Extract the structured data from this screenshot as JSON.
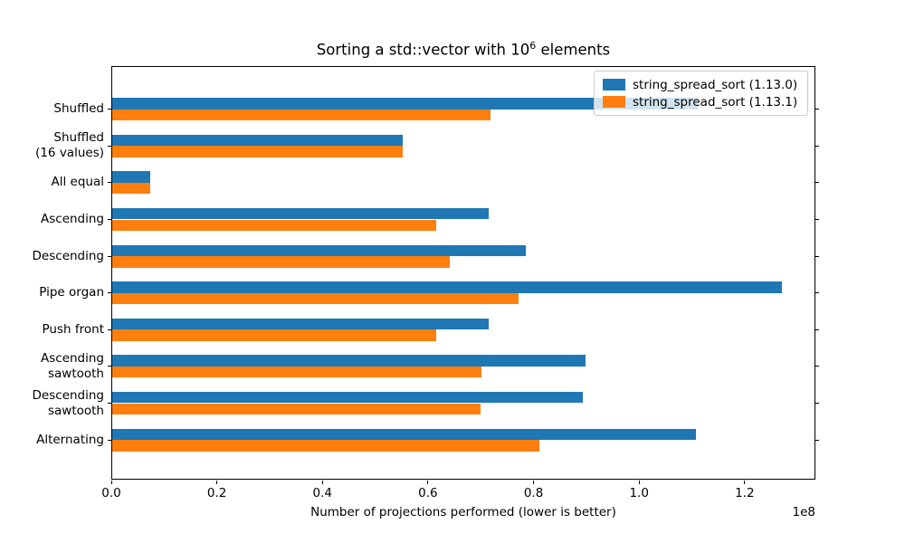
{
  "title": {
    "prefix": "Sorting a std::vector with 10",
    "superscript": "6",
    "suffix": " elements"
  },
  "chart_data": {
    "type": "bar",
    "orientation": "horizontal",
    "title": "Sorting a std::vector with 10^6 elements",
    "categories": [
      "Shuffled",
      "Shuffled\n(16 values)",
      "All equal",
      "Ascending",
      "Descending",
      "Pipe organ",
      "Push front",
      "Ascending\nsawtooth",
      "Descending\nsawtooth",
      "Alternating"
    ],
    "series": [
      {
        "name": "string_spread_sort (1.13.0)",
        "color": "#1f77b4",
        "values": [
          1.11,
          0.551,
          0.072,
          0.713,
          0.783,
          1.269,
          0.714,
          0.896,
          0.891,
          1.106
        ]
      },
      {
        "name": "string_spread_sort (1.13.1)",
        "color": "#ff7f0e",
        "values": [
          0.717,
          0.55,
          0.072,
          0.613,
          0.639,
          0.77,
          0.614,
          0.7,
          0.698,
          0.81
        ]
      }
    ],
    "value_units": "1e8",
    "xlabel": "Number of projections performed (lower is better)",
    "offset_text": "1e8",
    "xticks": [
      "0.0",
      "0.2",
      "0.4",
      "0.6",
      "0.8",
      "1.0",
      "1.2"
    ],
    "xtick_values": [
      0,
      0.2,
      0.4,
      0.6,
      0.8,
      1.0,
      1.2
    ],
    "xlim": [
      0,
      1.334
    ],
    "grid": false,
    "legend_position": "upper right"
  }
}
